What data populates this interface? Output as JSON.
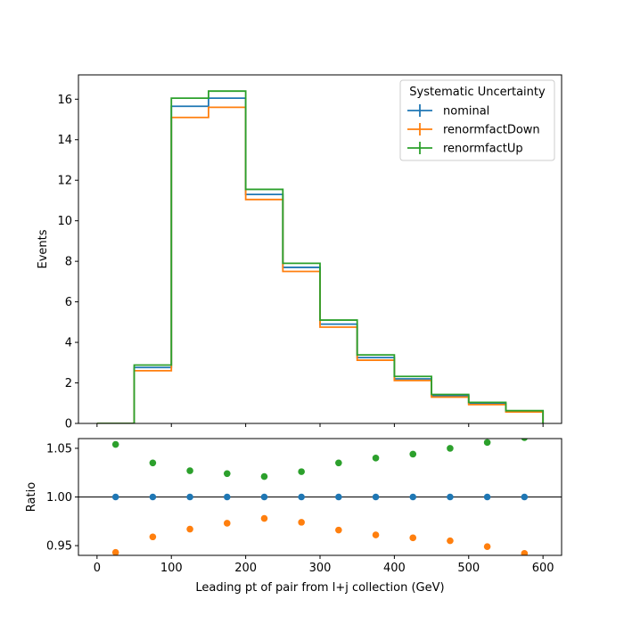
{
  "chart_data": [
    {
      "type": "step",
      "panel": "main",
      "xlabel": "",
      "ylabel": "Events",
      "xlim": [
        -25,
        625
      ],
      "ylim": [
        0,
        17.2
      ],
      "yticks": [
        0,
        2,
        4,
        6,
        8,
        10,
        12,
        14,
        16
      ],
      "ytick_labels": [
        "0",
        "2",
        "4",
        "6",
        "8",
        "10",
        "12",
        "14",
        "16"
      ],
      "bin_edges": [
        0,
        50,
        100,
        150,
        200,
        250,
        300,
        350,
        400,
        450,
        500,
        550,
        600
      ],
      "legend": {
        "title": "Systematic Uncertainty",
        "placement": "top-right"
      },
      "series": [
        {
          "name": "nominal",
          "color": "#1f77b4",
          "values": [
            0.0,
            2.76,
            15.65,
            16.05,
            11.3,
            7.7,
            4.9,
            3.25,
            2.2,
            1.37,
            0.98,
            0.6
          ]
        },
        {
          "name": "renormfactDown",
          "color": "#ff7f0e",
          "values": [
            0.0,
            2.6,
            15.1,
            15.6,
            11.05,
            7.5,
            4.75,
            3.12,
            2.12,
            1.3,
            0.93,
            0.57
          ]
        },
        {
          "name": "renormfactUp",
          "color": "#2ca02c",
          "values": [
            0.0,
            2.88,
            16.05,
            16.4,
            11.55,
            7.9,
            5.1,
            3.38,
            2.32,
            1.43,
            1.04,
            0.63
          ]
        }
      ]
    },
    {
      "type": "scatter",
      "panel": "ratio",
      "xlabel": "Leading pt of pair from l+j collection (GeV)",
      "ylabel": "Ratio",
      "xlim": [
        -25,
        625
      ],
      "ylim": [
        0.94,
        1.06
      ],
      "xticks": [
        0,
        100,
        200,
        300,
        400,
        500,
        600
      ],
      "xtick_labels": [
        "0",
        "100",
        "200",
        "300",
        "400",
        "500",
        "600"
      ],
      "yticks": [
        0.95,
        1.0,
        1.05
      ],
      "ytick_labels": [
        "0.95",
        "1.00",
        "1.05"
      ],
      "reference_line": 1.0,
      "x": [
        25,
        75,
        125,
        175,
        225,
        275,
        325,
        375,
        425,
        475,
        525,
        575
      ],
      "series": [
        {
          "name": "nominal",
          "color": "#1f77b4",
          "values": [
            1.0,
            1.0,
            1.0,
            1.0,
            1.0,
            1.0,
            1.0,
            1.0,
            1.0,
            1.0,
            1.0,
            1.0
          ]
        },
        {
          "name": "renormfactDown",
          "color": "#ff7f0e",
          "values": [
            0.943,
            0.959,
            0.967,
            0.973,
            0.978,
            0.974,
            0.966,
            0.961,
            0.958,
            0.955,
            0.949,
            0.942
          ]
        },
        {
          "name": "renormfactUp",
          "color": "#2ca02c",
          "values": [
            1.054,
            1.035,
            1.027,
            1.024,
            1.021,
            1.026,
            1.035,
            1.04,
            1.044,
            1.05,
            1.056,
            1.061
          ]
        }
      ]
    }
  ]
}
